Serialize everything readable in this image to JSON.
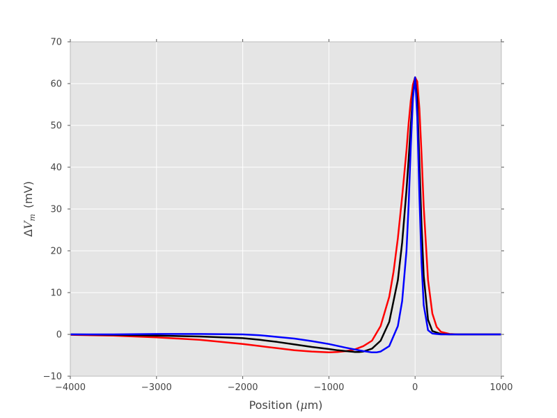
{
  "chart_data": {
    "type": "line",
    "title": "",
    "xlabel": {
      "prefix": "Position (",
      "mu": "μ",
      "suffix": "m)"
    },
    "ylabel": {
      "delta": "Δ",
      "v": "V",
      "sub": "m",
      "unit": "(mV)"
    },
    "xlim": [
      -4000,
      1000
    ],
    "ylim": [
      -10,
      70
    ],
    "x_ticks": [
      -4000,
      -3000,
      -2000,
      -1000,
      0,
      1000
    ],
    "y_ticks": [
      -10,
      0,
      10,
      20,
      30,
      40,
      50,
      60,
      70
    ],
    "x_tick_labels": [
      "−4000",
      "−3000",
      "−2000",
      "−1000",
      "0",
      "1000"
    ],
    "y_tick_labels": [
      "−10",
      "0",
      "10",
      "20",
      "30",
      "40",
      "50",
      "60",
      "70"
    ],
    "grid": true,
    "background": "#e5e5e5",
    "grid_color": "#ffffff",
    "series": [
      {
        "color": "#ff0000",
        "x": [
          -4000,
          -3500,
          -3000,
          -2500,
          -2000,
          -1800,
          -1600,
          -1400,
          -1200,
          -1000,
          -900,
          -800,
          -700,
          -600,
          -500,
          -400,
          -300,
          -250,
          -200,
          -150,
          -100,
          -75,
          -50,
          -25,
          0,
          25,
          50,
          75,
          100,
          150,
          200,
          250,
          300,
          400,
          500,
          600,
          800,
          1000
        ],
        "y": [
          -0.1,
          -0.3,
          -0.7,
          -1.3,
          -2.3,
          -2.8,
          -3.3,
          -3.8,
          -4.1,
          -4.3,
          -4.2,
          -4.0,
          -3.6,
          -2.8,
          -1.5,
          2.0,
          9.0,
          15.0,
          23.0,
          33.0,
          44.0,
          50.5,
          56.0,
          59.8,
          61.5,
          60.5,
          54.0,
          43.0,
          30.5,
          13.0,
          5.0,
          1.8,
          0.6,
          0.1,
          0.0,
          0.0,
          0.0,
          0.0
        ]
      },
      {
        "color": "#000000",
        "x": [
          -4000,
          -3500,
          -3000,
          -2500,
          -2000,
          -1800,
          -1600,
          -1400,
          -1200,
          -1000,
          -900,
          -800,
          -700,
          -650,
          -600,
          -500,
          -400,
          -300,
          -200,
          -150,
          -100,
          -75,
          -50,
          -25,
          0,
          25,
          50,
          75,
          100,
          150,
          200,
          300,
          400,
          600,
          800,
          1000
        ],
        "y": [
          0.0,
          -0.1,
          -0.3,
          -0.5,
          -0.9,
          -1.3,
          -1.8,
          -2.4,
          -3.0,
          -3.5,
          -3.8,
          -4.0,
          -4.2,
          -4.2,
          -4.1,
          -3.4,
          -1.5,
          3.0,
          13.0,
          22.0,
          34.5,
          42.0,
          50.0,
          57.5,
          61.5,
          56.0,
          41.0,
          26.0,
          14.0,
          3.5,
          0.8,
          0.1,
          0.0,
          0.0,
          0.0,
          0.0
        ]
      },
      {
        "color": "#0000ff",
        "x": [
          -4000,
          -3500,
          -3000,
          -2500,
          -2000,
          -1800,
          -1600,
          -1400,
          -1200,
          -1000,
          -800,
          -700,
          -600,
          -500,
          -450,
          -400,
          -300,
          -200,
          -150,
          -100,
          -75,
          -50,
          -25,
          0,
          25,
          50,
          75,
          100,
          150,
          200,
          300,
          400,
          600,
          800,
          1000
        ],
        "y": [
          0.0,
          0.0,
          0.1,
          0.1,
          0.0,
          -0.2,
          -0.6,
          -1.0,
          -1.6,
          -2.3,
          -3.2,
          -3.6,
          -4.0,
          -4.3,
          -4.3,
          -4.1,
          -2.8,
          2.0,
          8.0,
          20.0,
          31.0,
          45.0,
          56.5,
          61.5,
          52.0,
          33.0,
          17.0,
          7.0,
          1.0,
          0.2,
          0.0,
          0.0,
          0.0,
          0.0,
          0.0
        ]
      }
    ]
  }
}
